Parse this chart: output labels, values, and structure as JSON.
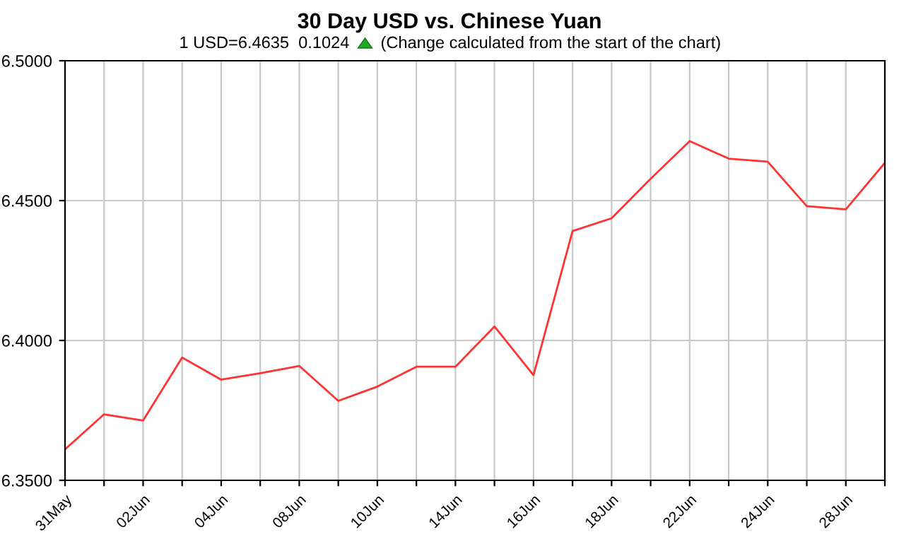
{
  "chart_data": {
    "type": "line",
    "title": "30 Day USD vs. Chinese Yuan",
    "subtitle": "1 USD=6.4635  0.1024",
    "annotations": [
      "(Change calculated from the start of the chart)"
    ],
    "categories": [
      "31May",
      null,
      "02Jun",
      null,
      "04Jun",
      null,
      "08Jun",
      null,
      "10Jun",
      null,
      "14Jun",
      null,
      "16Jun",
      null,
      "18Jun",
      null,
      "22Jun",
      null,
      "24Jun",
      null,
      "28Jun",
      null
    ],
    "series": [
      {
        "color": "#ff3333",
        "values": [
          6.3611,
          6.3736,
          6.3714,
          6.3939,
          6.386,
          6.3883,
          6.3909,
          6.3784,
          6.3835,
          6.3906,
          6.3906,
          6.405,
          6.3876,
          6.4391,
          6.4437,
          6.4578,
          6.4713,
          6.465,
          6.4639,
          6.448,
          6.4469,
          6.4635
        ]
      }
    ],
    "ylim": [
      6.35,
      6.5
    ],
    "yticks": [
      {
        "value": 6.35,
        "label": "6.3500"
      },
      {
        "value": 6.4,
        "label": "6.4000"
      },
      {
        "value": 6.45,
        "label": "6.4500"
      },
      {
        "value": 6.5,
        "label": "6.5000"
      }
    ],
    "grid": true,
    "legend": false,
    "marker": "none",
    "line_style": "solid"
  }
}
